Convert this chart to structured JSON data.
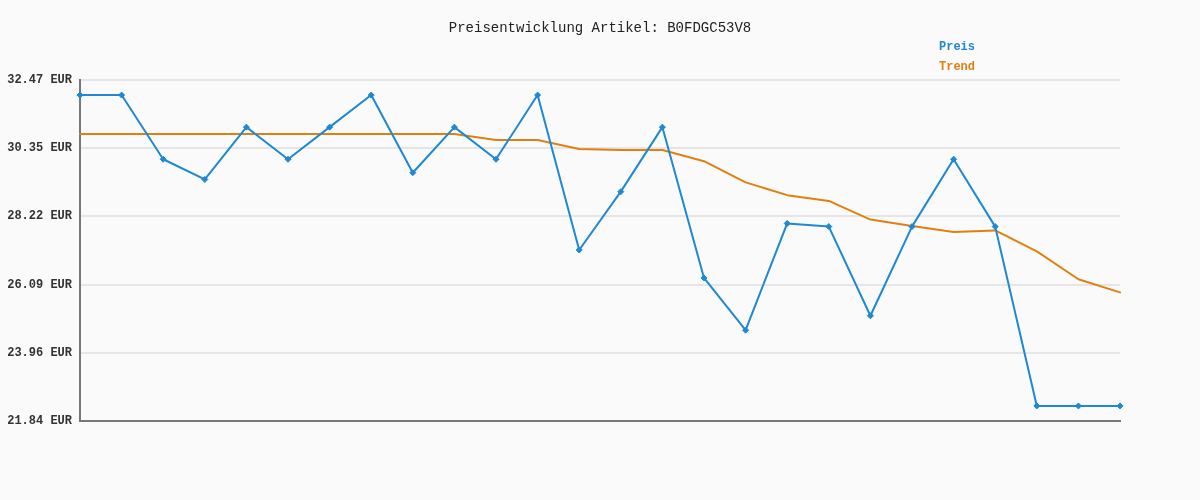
{
  "chart_data": {
    "type": "line",
    "title": "Preisentwicklung Artikel: B0FDGC53V8",
    "categories": [
      null,
      null,
      null,
      null,
      null,
      null,
      null,
      null,
      null,
      null,
      null,
      null,
      null,
      null,
      null,
      null,
      null,
      null,
      null,
      null,
      null,
      null,
      null,
      null,
      null,
      null
    ],
    "series": [
      {
        "name": "Preis",
        "color": "#1f88d2",
        "marker": "diamond",
        "values": [
          32.0,
          32.0,
          30.0,
          29.37,
          31.0,
          30.0,
          31.0,
          32.0,
          29.58,
          31.0,
          30.0,
          32.0,
          27.17,
          28.99,
          31.0,
          26.3,
          24.67,
          28.0,
          27.9,
          25.12,
          27.9,
          30.0,
          27.9,
          22.31,
          22.31,
          22.31
        ]
      },
      {
        "name": "Trend",
        "color": "#e08010",
        "marker": "none",
        "values": [
          30.79,
          30.79,
          30.79,
          30.79,
          30.79,
          30.79,
          30.79,
          30.79,
          30.79,
          30.79,
          30.6,
          30.6,
          30.32,
          30.29,
          30.29,
          29.94,
          29.28,
          28.88,
          28.7,
          28.12,
          27.92,
          27.73,
          27.78,
          27.13,
          26.26,
          25.85
        ]
      }
    ],
    "ylim": [
      21.84,
      32.47
    ],
    "yticks": [
      {
        "value": 21.84,
        "label": "21.84 EUR"
      },
      {
        "value": 23.96,
        "label": "23.96 EUR"
      },
      {
        "value": 26.09,
        "label": "26.09 EUR"
      },
      {
        "value": 28.22,
        "label": "28.22 EUR"
      },
      {
        "value": 30.35,
        "label": "30.35 EUR"
      },
      {
        "value": 32.47,
        "label": "32.47 EUR"
      }
    ],
    "grid": "y",
    "legend": "top right",
    "tick_labels": "y",
    "line_style": "solid"
  }
}
